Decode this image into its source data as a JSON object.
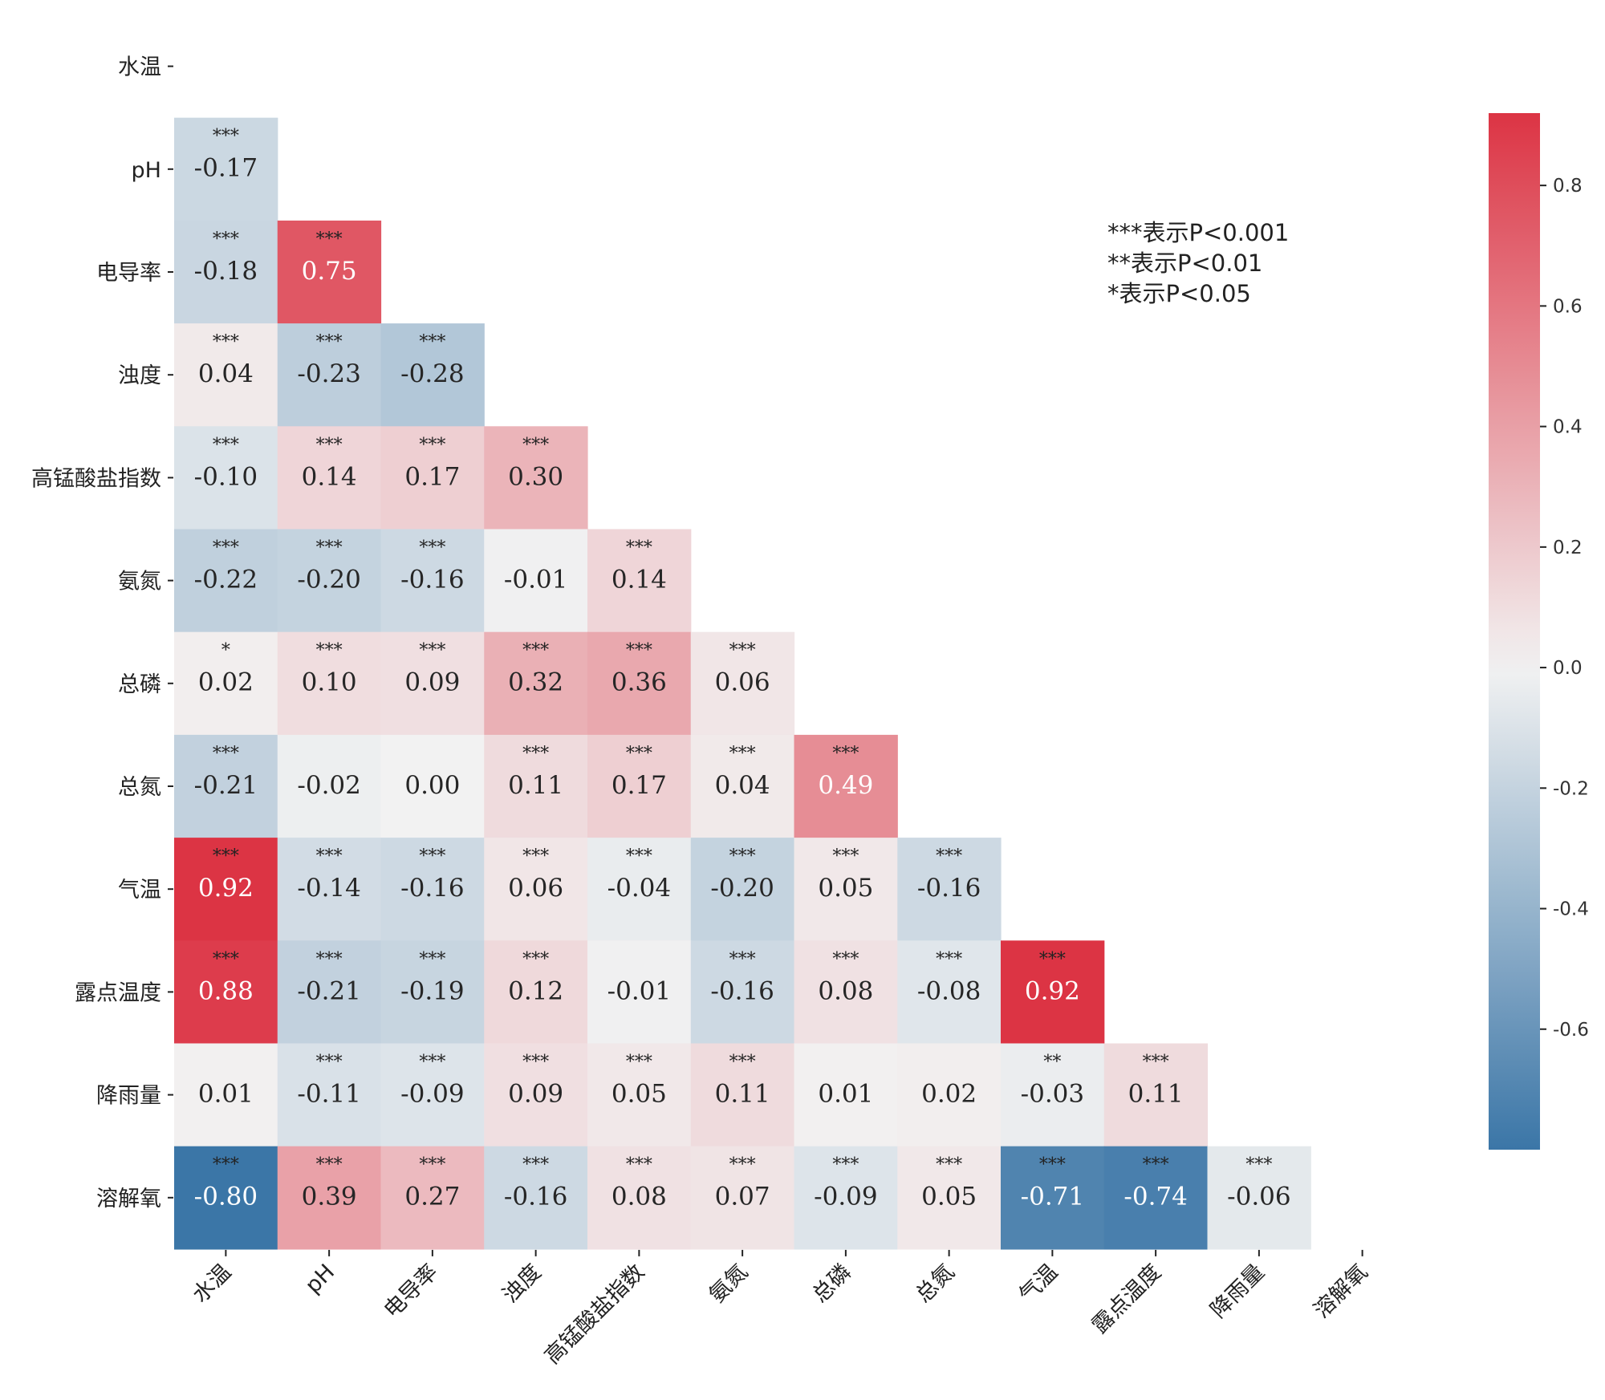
{
  "chart_data": {
    "type": "heatmap",
    "title": "",
    "xlabel": "",
    "ylabel": "",
    "variables": [
      "水温",
      "pH",
      "电导率",
      "浊度",
      "高锰酸盐指数",
      "氨氮",
      "总磷",
      "总氮",
      "气温",
      "露点温度",
      "降雨量",
      "溶解氧"
    ],
    "mask": "upper-triangle-including-diagonal",
    "matrix_lower": [
      [],
      [
        -0.17
      ],
      [
        -0.18,
        0.75
      ],
      [
        0.04,
        -0.23,
        -0.28
      ],
      [
        -0.1,
        0.14,
        0.17,
        0.3
      ],
      [
        -0.22,
        -0.2,
        -0.16,
        -0.01,
        0.14
      ],
      [
        0.02,
        0.1,
        0.09,
        0.32,
        0.36,
        0.06
      ],
      [
        -0.21,
        -0.02,
        0.0,
        0.11,
        0.17,
        0.04,
        0.49
      ],
      [
        0.92,
        -0.14,
        -0.16,
        0.06,
        -0.04,
        -0.2,
        0.05,
        -0.16
      ],
      [
        0.88,
        -0.21,
        -0.19,
        0.12,
        -0.01,
        -0.16,
        0.08,
        -0.08,
        0.92
      ],
      [
        0.01,
        -0.11,
        -0.09,
        0.09,
        0.05,
        0.11,
        0.01,
        0.02,
        -0.03,
        0.11
      ],
      [
        -0.8,
        0.39,
        0.27,
        -0.16,
        0.08,
        0.07,
        -0.09,
        0.05,
        -0.71,
        -0.74,
        -0.06
      ]
    ],
    "significance_lower": [
      [],
      [
        "***"
      ],
      [
        "***",
        "***"
      ],
      [
        "***",
        "***",
        "***"
      ],
      [
        "***",
        "***",
        "***",
        "***"
      ],
      [
        "***",
        "***",
        "***",
        "",
        "***"
      ],
      [
        "*",
        "***",
        "***",
        "***",
        "***",
        "***"
      ],
      [
        "***",
        "",
        "",
        "***",
        "***",
        "***",
        "***"
      ],
      [
        "***",
        "***",
        "***",
        "***",
        "***",
        "***",
        "***",
        "***"
      ],
      [
        "***",
        "***",
        "***",
        "***",
        "",
        "***",
        "***",
        "***",
        "***"
      ],
      [
        "",
        "***",
        "***",
        "***",
        "***",
        "***",
        "",
        "",
        "**",
        "***"
      ],
      [
        "***",
        "***",
        "***",
        "***",
        "***",
        "***",
        "***",
        "***",
        "***",
        "***",
        "***"
      ]
    ],
    "colorbar": {
      "vmin": -0.8,
      "vmax": 0.92,
      "ticks": [
        0.8,
        0.6,
        0.4,
        0.2,
        0.0,
        -0.2,
        -0.4,
        -0.6
      ],
      "tick_labels": [
        "0.8",
        "0.6",
        "0.4",
        "0.2",
        "0.0",
        "-0.2",
        "-0.4",
        "-0.6"
      ],
      "placement": "right"
    },
    "colormap": {
      "negative_end": "#3b76a7",
      "center": "#f2f2f2",
      "positive_end": "#dc3444"
    },
    "x_tick_rotation": "45deg",
    "legend": {
      "placement": "top-right",
      "lines": [
        "***表示P<0.001",
        "**表示P<0.01",
        "*表示P<0.05"
      ]
    },
    "grid": false
  }
}
